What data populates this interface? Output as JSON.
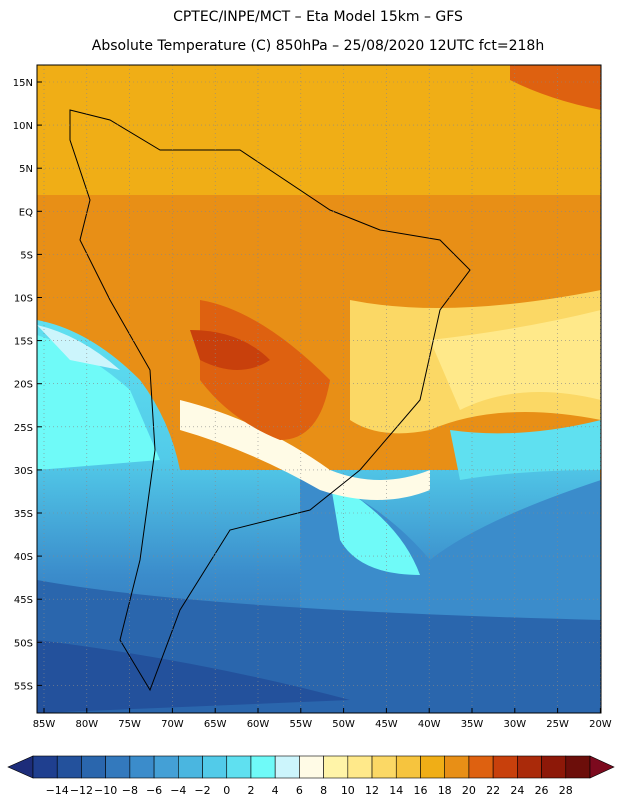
{
  "title_line1": "CPTEC/INPE/MCT –  Eta Model 15km – GFS",
  "title_line2": "Absolute Temperature (C) 850hPa – 25/08/2020 12UTC fct=218h",
  "lat_labels": [
    "15N",
    "10N",
    "5N",
    "EQ",
    "5S",
    "10S",
    "15S",
    "20S",
    "25S",
    "30S",
    "35S",
    "40S",
    "45S",
    "50S",
    "55S"
  ],
  "lon_labels": [
    "85W",
    "80W",
    "75W",
    "70W",
    "65W",
    "60W",
    "55W",
    "50W",
    "45W",
    "40W",
    "35W",
    "30W",
    "25W",
    "20W"
  ],
  "colorbar": {
    "labels": [
      "-14",
      "-12",
      "-10",
      "-8",
      "-6",
      "-4",
      "-2",
      "0",
      "2",
      "4",
      "6",
      "8",
      "10",
      "12",
      "14",
      "16",
      "18",
      "20",
      "22",
      "24",
      "26",
      "28"
    ],
    "colors": [
      "#1f3f8f",
      "#23519c",
      "#2a66ad",
      "#3379bd",
      "#3b8ccb",
      "#44a0d6",
      "#4ab6e0",
      "#52cbe9",
      "#5fe0f0",
      "#6ffaf8",
      "#ccf5fc",
      "#fffbe6",
      "#fff4a8",
      "#ffe98a",
      "#fbd865",
      "#f6c43e",
      "#f0ae16",
      "#e88f16",
      "#de6110",
      "#c8400c",
      "#aa2a0a",
      "#8d1808",
      "#6c0e0a"
    ],
    "low_color": "#1d2d7a",
    "high_color": "#7c0a1e"
  }
}
